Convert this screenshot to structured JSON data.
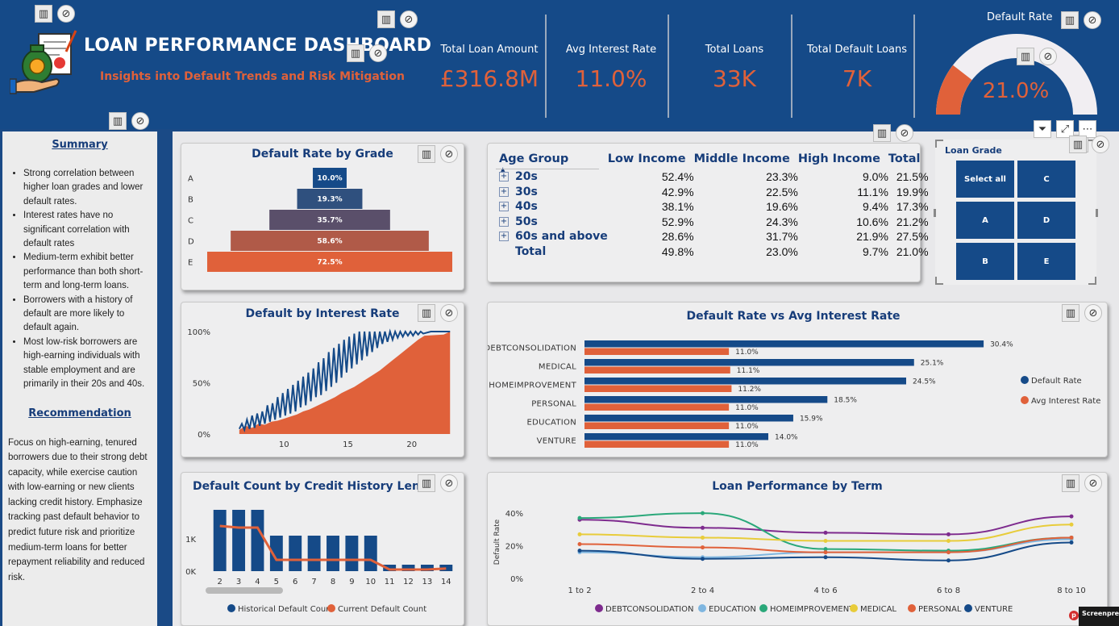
{
  "header": {
    "title": "LOAN PERFORMANCE DASHBOARD",
    "subtitle": "Insights into Default Trends and Risk Mitigation"
  },
  "kpis": [
    {
      "label": "Total Loan Amount",
      "value": "£316.8M"
    },
    {
      "label": "Avg Interest Rate",
      "value": "11.0%"
    },
    {
      "label": "Total Loans",
      "value": "33K"
    },
    {
      "label": "Total Default Loans",
      "value": "7K"
    }
  ],
  "gauge": {
    "title": "Default Rate",
    "value": "21.0%",
    "fraction": 0.21
  },
  "summary": {
    "heading": "Summary",
    "points": [
      "Strong correlation between higher loan grades and lower default rates.",
      "Interest rates have no significant correlation with default rates",
      "Medium-term exhibit better performance than both short-term and long-term loans.",
      "Borrowers with a history of default are more likely to default again.",
      "Most low-risk borrowers are high-earning individuals with stable employment and are primarily in their 20s and 40s."
    ],
    "rec_heading": "Recommendation",
    "recommendation": "Focus on high-earning, tenured borrowers due to their strong debt capacity, while exercise caution with low-earning or new clients lacking credit history. Emphasize tracking past default behavior to predict future risk and prioritize medium-term loans for better repayment reliability and reduced risk."
  },
  "matrix": {
    "headers": [
      "Age Group",
      "Low Income",
      "Middle Income",
      "High Income",
      "Total"
    ],
    "rows": [
      {
        "label": "20s",
        "cells": [
          "52.4%",
          "23.3%",
          "9.0%",
          "21.5%"
        ]
      },
      {
        "label": "30s",
        "cells": [
          "42.9%",
          "22.5%",
          "11.1%",
          "19.9%"
        ]
      },
      {
        "label": "40s",
        "cells": [
          "38.1%",
          "19.6%",
          "9.4%",
          "17.3%"
        ]
      },
      {
        "label": "50s",
        "cells": [
          "52.9%",
          "24.3%",
          "10.6%",
          "21.2%"
        ]
      },
      {
        "label": "60s and above",
        "cells": [
          "28.6%",
          "31.7%",
          "21.9%",
          "27.5%"
        ]
      },
      {
        "label": "Total",
        "cells": [
          "49.8%",
          "23.0%",
          "9.7%",
          "21.0%"
        ]
      }
    ]
  },
  "slicer": {
    "title": "Loan Grade",
    "tiles": [
      "Select all",
      "C",
      "A",
      "D",
      "B",
      "E"
    ]
  },
  "colors": {
    "navy": "#154a88",
    "orange": "#e0613a",
    "panel": "#eeeeef"
  },
  "chart_data": [
    {
      "type": "bar",
      "title": "Default Rate by Grade",
      "categories": [
        "A",
        "B",
        "C",
        "D",
        "E"
      ],
      "values": [
        10.0,
        19.3,
        35.7,
        58.6,
        72.5
      ],
      "labels": [
        "10.0%",
        "19.3%",
        "35.7%",
        "58.6%",
        "72.5%"
      ],
      "bar_colors": [
        "#154a88",
        "#2f507e",
        "#5a4f6a",
        "#b05a48",
        "#e0613a"
      ],
      "orientation": "horizontal-centered"
    },
    {
      "type": "area",
      "title": "Default by Interest Rate",
      "xticks": [
        "10",
        "15",
        "20"
      ],
      "yticks": [
        "0%",
        "50%",
        "100%"
      ],
      "xlim": [
        5.5,
        23.3
      ],
      "ylim": [
        0,
        100
      ],
      "series": [
        {
          "values": [
            [
              6.5,
              4
            ],
            [
              7,
              8
            ],
            [
              7.5,
              6
            ],
            [
              8,
              10
            ],
            [
              8.5,
              9
            ],
            [
              9,
              12
            ],
            [
              9.5,
              13
            ],
            [
              10,
              15
            ],
            [
              10.5,
              17
            ],
            [
              11,
              19
            ],
            [
              11.5,
              22
            ],
            [
              12,
              24
            ],
            [
              12.5,
              27
            ],
            [
              13,
              30
            ],
            [
              13.5,
              33
            ],
            [
              14,
              36
            ],
            [
              14.5,
              40
            ],
            [
              15,
              43
            ],
            [
              15.5,
              46
            ],
            [
              16,
              50
            ],
            [
              16.5,
              54
            ],
            [
              17,
              58
            ],
            [
              17.5,
              62
            ],
            [
              18,
              67
            ],
            [
              18.5,
              72
            ],
            [
              19,
              77
            ],
            [
              19.5,
              82
            ],
            [
              20,
              87
            ],
            [
              20.5,
              92
            ],
            [
              21,
              96
            ],
            [
              22.5,
              97
            ],
            [
              23,
              100
            ]
          ]
        },
        {
          "values": [
            [
              6.5,
              5
            ],
            [
              6.7,
              10
            ],
            [
              6.9,
              4
            ],
            [
              7.1,
              14
            ],
            [
              7.3,
              5
            ],
            [
              7.5,
              18
            ],
            [
              7.7,
              6
            ],
            [
              7.9,
              20
            ],
            [
              8.1,
              8
            ],
            [
              8.3,
              22
            ],
            [
              8.5,
              10
            ],
            [
              8.7,
              28
            ],
            [
              8.9,
              12
            ],
            [
              9.1,
              30
            ],
            [
              9.3,
              14
            ],
            [
              9.5,
              36
            ],
            [
              9.7,
              16
            ],
            [
              9.9,
              40
            ],
            [
              10.1,
              18
            ],
            [
              10.3,
              44
            ],
            [
              10.5,
              20
            ],
            [
              10.7,
              48
            ],
            [
              10.9,
              22
            ],
            [
              11.1,
              52
            ],
            [
              11.3,
              26
            ],
            [
              11.5,
              56
            ],
            [
              11.7,
              28
            ],
            [
              11.9,
              60
            ],
            [
              12.1,
              32
            ],
            [
              12.3,
              64
            ],
            [
              12.5,
              36
            ],
            [
              12.7,
              70
            ],
            [
              12.9,
              38
            ],
            [
              13.1,
              74
            ],
            [
              13.3,
              42
            ],
            [
              13.5,
              80
            ],
            [
              13.7,
              46
            ],
            [
              13.9,
              84
            ],
            [
              14.1,
              50
            ],
            [
              14.3,
              88
            ],
            [
              14.5,
              55
            ],
            [
              14.7,
              92
            ],
            [
              14.9,
              60
            ],
            [
              15.1,
              95
            ],
            [
              15.3,
              64
            ],
            [
              15.5,
              98
            ],
            [
              15.7,
              68
            ],
            [
              15.9,
              100
            ],
            [
              16.1,
              72
            ],
            [
              16.3,
              100
            ],
            [
              16.5,
              76
            ],
            [
              16.7,
              100
            ],
            [
              16.9,
              80
            ],
            [
              17.1,
              100
            ],
            [
              17.3,
              84
            ],
            [
              17.5,
              100
            ],
            [
              17.7,
              88
            ],
            [
              17.9,
              100
            ],
            [
              18.1,
              90
            ],
            [
              18.3,
              100
            ],
            [
              18.5,
              92
            ],
            [
              18.7,
              100
            ],
            [
              18.9,
              94
            ],
            [
              19.1,
              100
            ],
            [
              19.3,
              95
            ],
            [
              19.5,
              100
            ],
            [
              19.7,
              96
            ],
            [
              19.9,
              100
            ],
            [
              20.1,
              96
            ],
            [
              20.3,
              100
            ],
            [
              20.5,
              97
            ],
            [
              20.7,
              100
            ],
            [
              20.9,
              98
            ],
            [
              21.5,
              100
            ],
            [
              22.5,
              100
            ],
            [
              23,
              100
            ]
          ]
        }
      ],
      "colors": [
        "#e0613a",
        "#154a88"
      ]
    },
    {
      "type": "bar",
      "title": "Default Rate vs Avg Interest Rate",
      "categories": [
        "DEBTCONSOLIDATION",
        "MEDICAL",
        "HOMEIMPROVEMENT",
        "PERSONAL",
        "EDUCATION",
        "VENTURE"
      ],
      "series": [
        {
          "name": "Default Rate",
          "values": [
            30.4,
            25.1,
            24.5,
            18.5,
            15.9,
            14.0
          ],
          "labels": [
            "30.4%",
            "25.1%",
            "24.5%",
            "18.5%",
            "15.9%",
            "14.0%"
          ],
          "color": "#154a88"
        },
        {
          "name": "Avg Interest Rate",
          "values": [
            11.0,
            11.1,
            11.2,
            11.0,
            11.0,
            11.0
          ],
          "labels": [
            "11.0%",
            "11.1%",
            "11.2%",
            "11.0%",
            "11.0%",
            "11.0%"
          ],
          "color": "#e0613a"
        }
      ],
      "xlim": [
        0,
        35
      ],
      "legend": "right"
    },
    {
      "type": "bar",
      "title": "Default Count by Credit History Leng",
      "categories": [
        "2",
        "3",
        "4",
        "5",
        "6",
        "7",
        "8",
        "9",
        "10",
        "11",
        "12",
        "13",
        "14"
      ],
      "series": [
        {
          "name": "Historical Default Count",
          "values": [
            1900,
            1900,
            1900,
            1100,
            1100,
            1100,
            1100,
            1100,
            1100,
            200,
            200,
            200,
            200
          ],
          "color": "#154a88"
        },
        {
          "name": "Current Default Count",
          "values": [
            1400,
            1350,
            1350,
            350,
            350,
            350,
            350,
            350,
            350,
            50,
            50,
            50,
            80
          ],
          "color": "#e0613a"
        }
      ],
      "yticks": [
        "0K",
        "1K"
      ],
      "ylim": [
        0,
        2100
      ],
      "legend": "bottom"
    },
    {
      "type": "line",
      "title": "Loan Performance by Term",
      "ylabel": "Default Rate",
      "x": [
        "1 to 2",
        "2 to 4",
        "4 to 6",
        "6 to 8",
        "8 to 10"
      ],
      "yticks": [
        "0%",
        "20%",
        "40%"
      ],
      "ylim": [
        0,
        45
      ],
      "series": [
        {
          "name": "DEBTCONSOLIDATION",
          "values": [
            36,
            31,
            28,
            27,
            38
          ],
          "color": "#7e2b8e"
        },
        {
          "name": "EDUCATION",
          "values": [
            16,
            13,
            16,
            16,
            24
          ],
          "color": "#7fb6e0"
        },
        {
          "name": "HOMEIMPROVEMENT",
          "values": [
            37,
            40,
            18,
            17,
            25
          ],
          "color": "#2aa87a"
        },
        {
          "name": "MEDICAL",
          "values": [
            27,
            25,
            23,
            23,
            33
          ],
          "color": "#e8cc3a"
        },
        {
          "name": "PERSONAL",
          "values": [
            21,
            19,
            16,
            16,
            25
          ],
          "color": "#e0613a"
        },
        {
          "name": "VENTURE",
          "values": [
            17,
            12,
            13,
            11,
            22
          ],
          "color": "#154a88"
        }
      ],
      "legend": "bottom"
    }
  ]
}
